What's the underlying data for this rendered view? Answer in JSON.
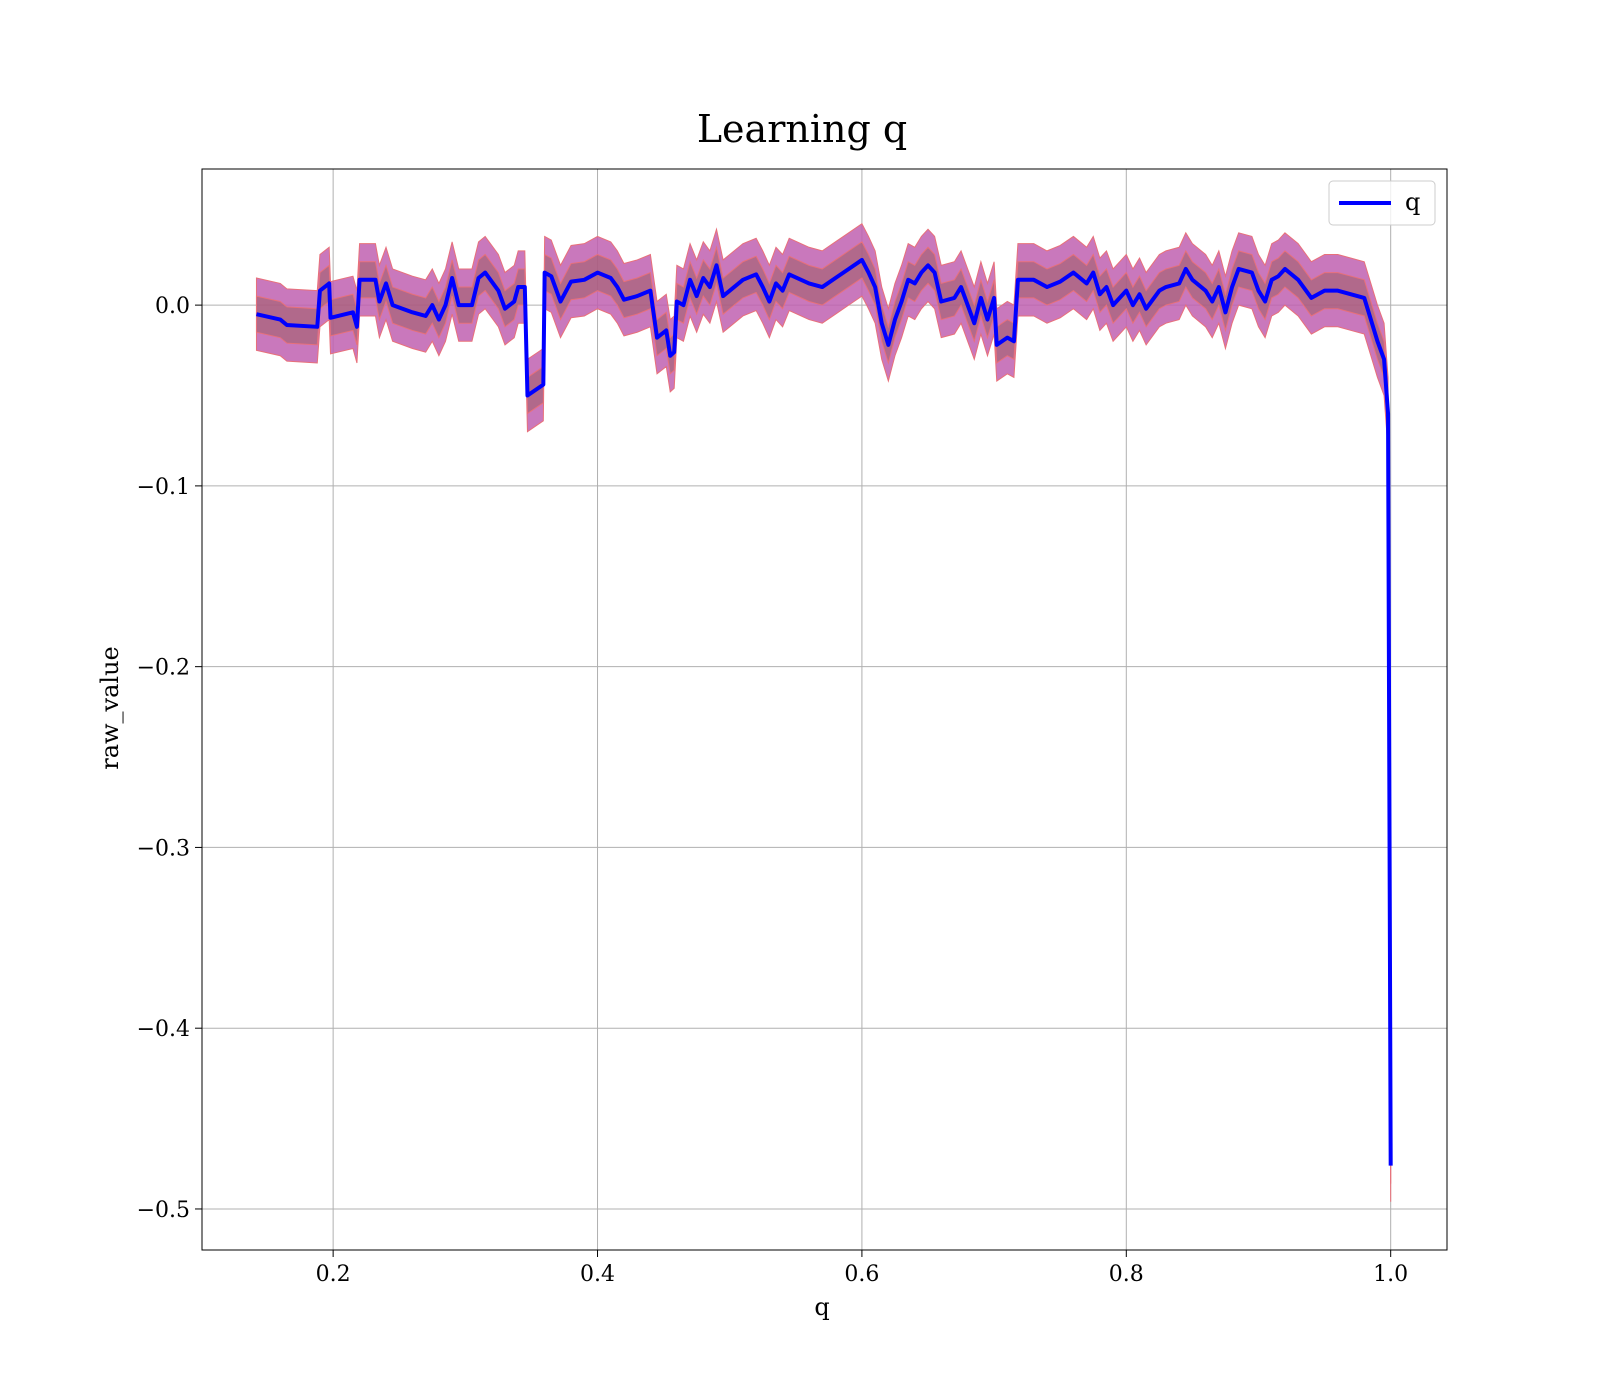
{
  "chart_data": {
    "type": "line",
    "title": "Learning q",
    "xlabel": "q",
    "ylabel": "raw_value",
    "xlim": [
      0.1008,
      1.0426
    ],
    "ylim": [
      -0.5227,
      0.0753
    ],
    "xticks": [
      0.2,
      0.4,
      0.6,
      0.8,
      {
        "value": 1.0,
        "label": "1.0"
      }
    ],
    "yticks": [
      {
        "value": 0.0,
        "label": "0.0"
      },
      {
        "value": -0.1,
        "label": "−0.1"
      },
      {
        "value": -0.2,
        "label": "−0.2"
      },
      {
        "value": -0.3,
        "label": "−0.3"
      },
      {
        "value": -0.4,
        "label": "−0.4"
      },
      {
        "value": -0.5,
        "label": "−0.5"
      }
    ],
    "grid": true,
    "legend": "upper right",
    "x": [
      0.142,
      0.16,
      0.165,
      0.188,
      0.19,
      0.197,
      0.198,
      0.215,
      0.218,
      0.22,
      0.232,
      0.235,
      0.24,
      0.245,
      0.26,
      0.27,
      0.275,
      0.28,
      0.285,
      0.29,
      0.295,
      0.305,
      0.31,
      0.315,
      0.325,
      0.33,
      0.337,
      0.34,
      0.345,
      0.347,
      0.355,
      0.359,
      0.36,
      0.365,
      0.372,
      0.38,
      0.39,
      0.4,
      0.41,
      0.415,
      0.42,
      0.43,
      0.44,
      0.445,
      0.452,
      0.455,
      0.458,
      0.46,
      0.465,
      0.47,
      0.475,
      0.48,
      0.485,
      0.49,
      0.495,
      0.5,
      0.51,
      0.52,
      0.525,
      0.53,
      0.535,
      0.54,
      0.545,
      0.56,
      0.57,
      0.58,
      0.59,
      0.6,
      0.605,
      0.61,
      0.615,
      0.62,
      0.625,
      0.63,
      0.635,
      0.64,
      0.645,
      0.65,
      0.655,
      0.66,
      0.67,
      0.675,
      0.68,
      0.685,
      0.69,
      0.695,
      0.7,
      0.702,
      0.71,
      0.715,
      0.718,
      0.73,
      0.74,
      0.75,
      0.76,
      0.77,
      0.775,
      0.78,
      0.785,
      0.79,
      0.8,
      0.805,
      0.81,
      0.815,
      0.825,
      0.83,
      0.84,
      0.845,
      0.85,
      0.86,
      0.865,
      0.87,
      0.875,
      0.88,
      0.885,
      0.895,
      0.9,
      0.905,
      0.91,
      0.915,
      0.92,
      0.93,
      0.94,
      0.95,
      0.96,
      0.97,
      0.98,
      0.985,
      0.99,
      0.995,
      0.998,
      1.0
    ],
    "series": [
      {
        "name": "q",
        "color": "#0000ff",
        "band_color": "#c060b0",
        "inner_band_color": "#9a5a5a",
        "error": 0.02,
        "inner_error": 0.01,
        "values": [
          -0.005,
          -0.008,
          -0.011,
          -0.012,
          0.008,
          0.012,
          -0.007,
          -0.004,
          -0.012,
          0.014,
          0.014,
          0.002,
          0.012,
          0.0,
          -0.004,
          -0.006,
          0.0,
          -0.008,
          0.0,
          0.015,
          0.0,
          0.0,
          0.015,
          0.018,
          0.008,
          -0.002,
          0.002,
          0.01,
          0.01,
          -0.05,
          -0.046,
          -0.044,
          0.018,
          0.016,
          0.002,
          0.013,
          0.014,
          0.018,
          0.015,
          0.01,
          0.003,
          0.005,
          0.008,
          -0.018,
          -0.014,
          -0.028,
          -0.026,
          0.002,
          0.0,
          0.014,
          0.005,
          0.015,
          0.01,
          0.022,
          0.005,
          0.008,
          0.014,
          0.017,
          0.01,
          0.002,
          0.012,
          0.008,
          0.017,
          0.012,
          0.01,
          0.015,
          0.02,
          0.025,
          0.018,
          0.01,
          -0.01,
          -0.022,
          -0.008,
          0.002,
          0.014,
          0.012,
          0.018,
          0.022,
          0.018,
          0.002,
          0.004,
          0.01,
          0.0,
          -0.01,
          0.004,
          -0.008,
          0.004,
          -0.022,
          -0.018,
          -0.02,
          0.014,
          0.014,
          0.01,
          0.013,
          0.018,
          0.012,
          0.018,
          0.006,
          0.01,
          0.0,
          0.008,
          0.0,
          0.006,
          -0.002,
          0.008,
          0.01,
          0.012,
          0.02,
          0.014,
          0.008,
          0.002,
          0.01,
          -0.004,
          0.01,
          0.02,
          0.018,
          0.008,
          0.002,
          0.014,
          0.016,
          0.02,
          0.014,
          0.004,
          0.008,
          0.008,
          0.006,
          0.004,
          -0.008,
          -0.02,
          -0.03,
          -0.06,
          -0.476
        ]
      }
    ]
  }
}
